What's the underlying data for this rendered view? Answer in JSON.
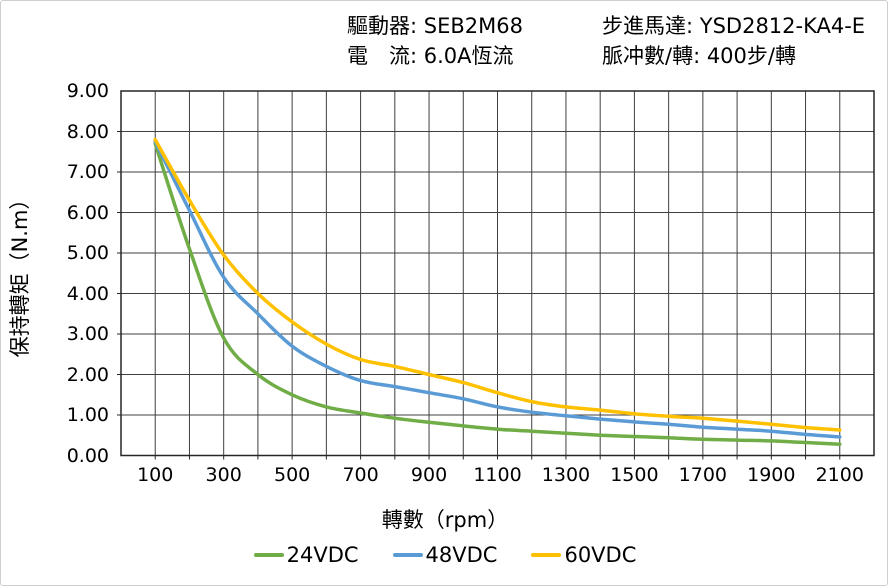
{
  "header": {
    "line1_left": "驅動器: SEB2M68",
    "line2_left": "電　流: 6.0A恆流",
    "line1_right": "步進馬達: YSD2812-KA4-E",
    "line2_right": "脈冲數/轉: 400步/轉"
  },
  "chart_data": {
    "type": "line",
    "title": "",
    "xlabel": "轉數（rpm）",
    "ylabel": "保持轉矩（N.m）",
    "x": [
      100,
      200,
      300,
      400,
      500,
      600,
      700,
      800,
      900,
      1000,
      1100,
      1200,
      1300,
      1400,
      1500,
      1600,
      1700,
      1800,
      1900,
      2000,
      2100
    ],
    "series": [
      {
        "name": "24VDC",
        "color": "#70AD47",
        "values": [
          7.7,
          5.1,
          2.9,
          2.0,
          1.5,
          1.2,
          1.05,
          0.92,
          0.82,
          0.73,
          0.65,
          0.6,
          0.55,
          0.5,
          0.47,
          0.44,
          0.4,
          0.38,
          0.36,
          0.32,
          0.28
        ]
      },
      {
        "name": "48VDC",
        "color": "#5B9BD5",
        "values": [
          7.75,
          6.05,
          4.4,
          3.5,
          2.7,
          2.2,
          1.85,
          1.7,
          1.55,
          1.4,
          1.2,
          1.07,
          0.98,
          0.9,
          0.83,
          0.77,
          0.7,
          0.65,
          0.6,
          0.52,
          0.46
        ]
      },
      {
        "name": "60VDC",
        "color": "#FFC000",
        "values": [
          7.8,
          6.3,
          4.95,
          4.0,
          3.3,
          2.75,
          2.37,
          2.2,
          2.0,
          1.8,
          1.55,
          1.33,
          1.2,
          1.12,
          1.03,
          0.97,
          0.92,
          0.85,
          0.77,
          0.69,
          0.63
        ]
      }
    ],
    "xlim": [
      0,
      2200
    ],
    "ylim": [
      0,
      9
    ],
    "x_grid_step": 100,
    "y_grid_step": 1,
    "x_tick_labels": [
      "100",
      "300",
      "500",
      "700",
      "900",
      "1100",
      "1300",
      "1500",
      "1700",
      "1900",
      "2100"
    ],
    "x_tick_values": [
      100,
      300,
      500,
      700,
      900,
      1100,
      1300,
      1500,
      1700,
      1900,
      2100
    ],
    "y_tick_labels": [
      "0.00",
      "1.00",
      "2.00",
      "3.00",
      "4.00",
      "5.00",
      "6.00",
      "7.00",
      "8.00",
      "9.00"
    ],
    "y_tick_values": [
      0,
      1,
      2,
      3,
      4,
      5,
      6,
      7,
      8,
      9
    ],
    "grid": true,
    "legend_position": "bottom",
    "grid_color": "#3f3f3f",
    "axis_color": "#262626",
    "line_width": 3.5
  }
}
